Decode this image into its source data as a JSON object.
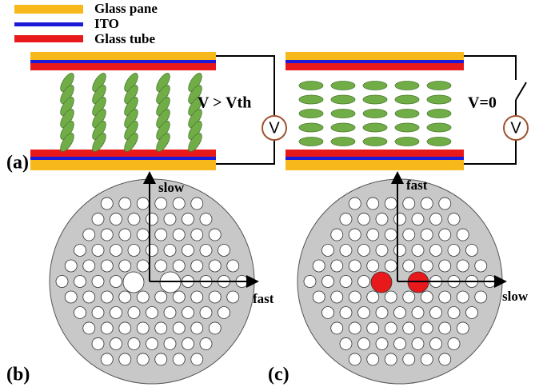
{
  "legend": [
    {
      "label": "Glass pane"
    },
    {
      "label": "ITO"
    },
    {
      "label": "Glass tube"
    }
  ],
  "panel_a": {
    "label": "(a)",
    "left_voltage": "V > Vth",
    "right_voltage": "V=0",
    "meter": "V"
  },
  "panel_b": {
    "label": "(b)",
    "vertical_axis": "slow",
    "horizontal_axis": "fast"
  },
  "panel_c": {
    "label": "(c)",
    "vertical_axis": "fast",
    "horizontal_axis": "slow"
  }
}
